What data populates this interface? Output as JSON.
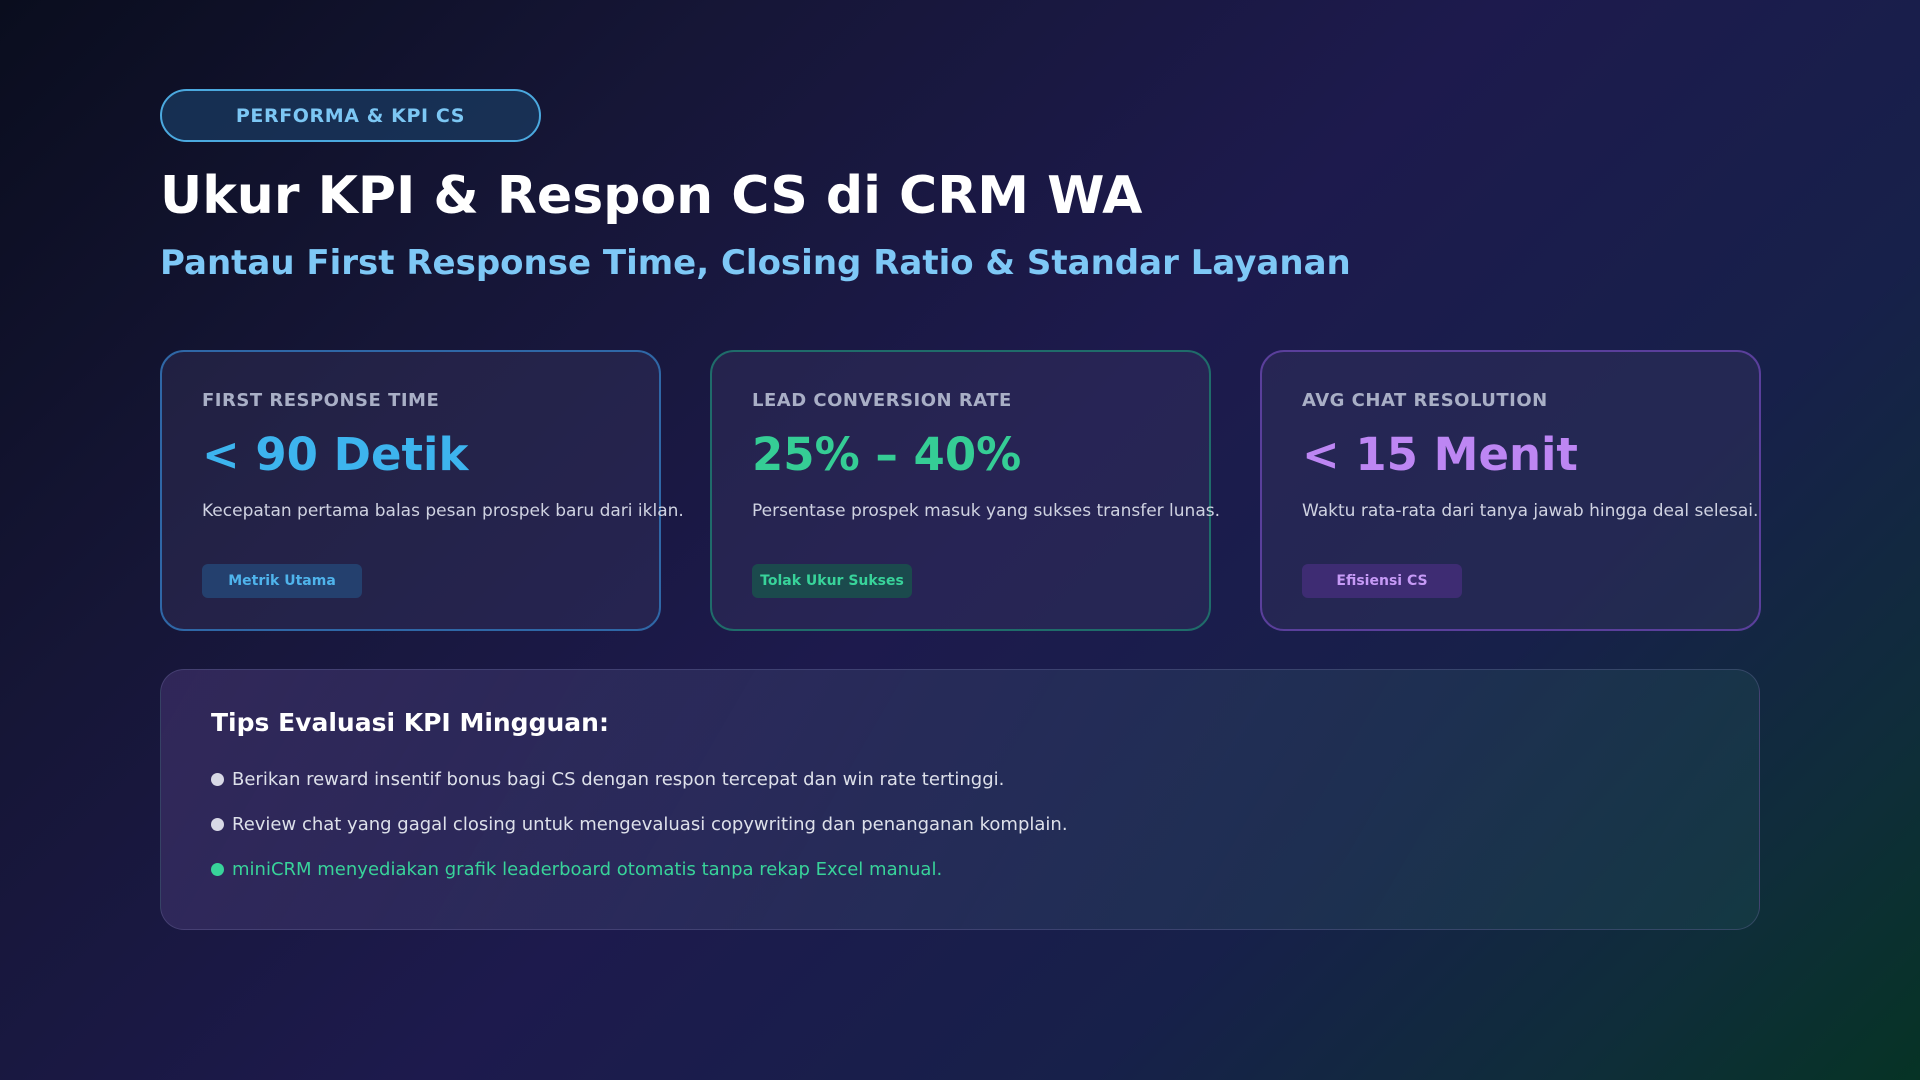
{
  "header": {
    "badge": "PERFORMA & KPI CS",
    "title": "Ukur KPI & Respon CS di CRM WA",
    "subtitle": "Pantau First Response Time, Closing Ratio & Standar Layanan"
  },
  "cards": [
    {
      "label": "FIRST RESPONSE TIME",
      "value": "< 90 Detik",
      "description": "Kecepatan pertama balas pesan prospek baru dari iklan.",
      "tag": "Metrik Utama",
      "accent": "#3db4ee"
    },
    {
      "label": "LEAD CONVERSION RATE",
      "value": "25% – 40%",
      "description": "Persentase prospek masuk yang sukses transfer lunas.",
      "tag": "Tolak Ukur Sukses",
      "accent": "#35cd95"
    },
    {
      "label": "AVG CHAT RESOLUTION",
      "value": "< 15 Menit",
      "description": "Waktu rata-rata dari tanya jawab hingga deal selesai.",
      "tag": "Efisiensi CS",
      "accent": "#bd86f3"
    }
  ],
  "tips": {
    "title": "Tips Evaluasi KPI Mingguan:",
    "items": [
      "Berikan reward insentif bonus bagi CS dengan respon tercepat dan win rate tertinggi.",
      "Review chat yang gagal closing untuk mengevaluasi copywriting dan penanganan komplain.",
      "miniCRM menyediakan grafik leaderboard otomatis tanpa rekap Excel manual."
    ],
    "highlight_color": "#38d39a"
  }
}
